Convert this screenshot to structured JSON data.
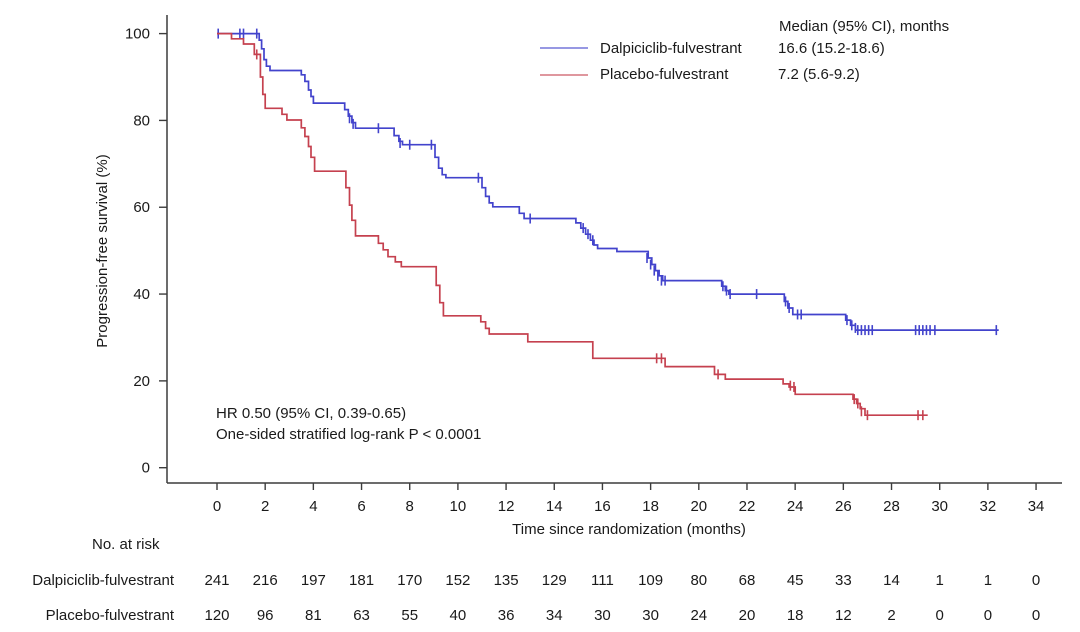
{
  "figure": {
    "background": "#ffffff",
    "text_color": "#1a1a1a",
    "axis_color": "#3c3c3c"
  },
  "chart_data": {
    "type": "line",
    "subtype": "kaplan-meier-step",
    "title": "",
    "xlabel": "Time since randomization (months)",
    "ylabel": "Progression-free survival (%)",
    "xlim": [
      0,
      34
    ],
    "ylim": [
      0,
      100
    ],
    "xticks": [
      0,
      2,
      4,
      6,
      8,
      10,
      12,
      14,
      16,
      18,
      20,
      22,
      24,
      26,
      28,
      30,
      32,
      34
    ],
    "yticks": [
      0,
      20,
      40,
      60,
      80,
      100
    ],
    "grid": "off",
    "legend_position": "top-center-right",
    "legend": {
      "header": "Median (95% CI), months",
      "entries": [
        {
          "label": "Dalpiciclib-fulvestrant",
          "median": "16.6 (15.2-18.6)",
          "color": "#4243cc"
        },
        {
          "label": "Placebo-fulvestrant",
          "median": "7.2 (5.6-9.2)",
          "color": "#c5414f"
        }
      ]
    },
    "annotation": {
      "line1": "HR 0.50 (95% CI, 0.39-0.65)",
      "line2": "One-sided stratified log-rank P < 0.0001"
    },
    "series": [
      {
        "name": "Dalpiciclib-fulvestrant",
        "color": "#4243cc",
        "points": [
          [
            0,
            100
          ],
          [
            1.75,
            98.5
          ],
          [
            1.85,
            96.5
          ],
          [
            1.95,
            94
          ],
          [
            2.05,
            92.5
          ],
          [
            2.2,
            91.5
          ],
          [
            3.5,
            90.5
          ],
          [
            3.65,
            89
          ],
          [
            3.8,
            87
          ],
          [
            3.9,
            85.5
          ],
          [
            4.0,
            84
          ],
          [
            5.3,
            82.5
          ],
          [
            5.45,
            81
          ],
          [
            5.6,
            79.5
          ],
          [
            5.75,
            78.2
          ],
          [
            7.35,
            76.5
          ],
          [
            7.55,
            75.2
          ],
          [
            7.7,
            74.4
          ],
          [
            9.05,
            71.5
          ],
          [
            9.2,
            69
          ],
          [
            9.35,
            67.5
          ],
          [
            9.5,
            66.8
          ],
          [
            11.0,
            64.5
          ],
          [
            11.15,
            62.5
          ],
          [
            11.3,
            61
          ],
          [
            11.45,
            60.1
          ],
          [
            12.55,
            58.6
          ],
          [
            12.75,
            57.4
          ],
          [
            14.9,
            56.4
          ],
          [
            15.1,
            55.2
          ],
          [
            15.3,
            53.8
          ],
          [
            15.5,
            52.4
          ],
          [
            15.65,
            51.3
          ],
          [
            15.8,
            50.5
          ],
          [
            16.6,
            49.8
          ],
          [
            17.9,
            48.3
          ],
          [
            18.05,
            46.8
          ],
          [
            18.2,
            45.4
          ],
          [
            18.35,
            44.2
          ],
          [
            18.5,
            43.1
          ],
          [
            20.95,
            41.8
          ],
          [
            21.1,
            40.8
          ],
          [
            21.25,
            40.0
          ],
          [
            23.55,
            38.3
          ],
          [
            23.7,
            36.8
          ],
          [
            23.9,
            35.3
          ],
          [
            26.1,
            34.0
          ],
          [
            26.3,
            32.8
          ],
          [
            26.5,
            31.7
          ],
          [
            32.45,
            31.7
          ]
        ],
        "censors": [
          [
            0.05,
            100
          ],
          [
            0.95,
            100
          ],
          [
            1.1,
            100
          ],
          [
            1.65,
            100
          ],
          [
            5.5,
            80.5
          ],
          [
            5.65,
            79.2
          ],
          [
            6.7,
            78.2
          ],
          [
            7.6,
            74.8
          ],
          [
            8.0,
            74.4
          ],
          [
            8.9,
            74.4
          ],
          [
            10.85,
            66.8
          ],
          [
            13.0,
            57.4
          ],
          [
            15.2,
            55.2
          ],
          [
            15.4,
            53.8
          ],
          [
            15.6,
            52.4
          ],
          [
            17.85,
            48.3
          ],
          [
            18.0,
            46.8
          ],
          [
            18.15,
            45.4
          ],
          [
            18.3,
            44.2
          ],
          [
            18.45,
            43.1
          ],
          [
            18.6,
            43.1
          ],
          [
            21.0,
            41.8
          ],
          [
            21.15,
            40.8
          ],
          [
            21.3,
            40.0
          ],
          [
            22.4,
            40.0
          ],
          [
            23.6,
            38.3
          ],
          [
            23.75,
            36.8
          ],
          [
            24.1,
            35.3
          ],
          [
            24.25,
            35.3
          ],
          [
            26.15,
            34.0
          ],
          [
            26.35,
            32.8
          ],
          [
            26.5,
            32.2
          ],
          [
            26.6,
            31.7
          ],
          [
            26.75,
            31.7
          ],
          [
            26.9,
            31.7
          ],
          [
            27.05,
            31.7
          ],
          [
            27.2,
            31.7
          ],
          [
            29.0,
            31.7
          ],
          [
            29.15,
            31.7
          ],
          [
            29.3,
            31.7
          ],
          [
            29.45,
            31.7
          ],
          [
            29.6,
            31.7
          ],
          [
            29.8,
            31.7
          ],
          [
            32.35,
            31.7
          ]
        ]
      },
      {
        "name": "Placebo-fulvestrant",
        "color": "#c5414f",
        "points": [
          [
            0,
            100
          ],
          [
            0.6,
            98.8
          ],
          [
            1.1,
            97.6
          ],
          [
            1.55,
            95.2
          ],
          [
            1.8,
            90
          ],
          [
            1.9,
            86
          ],
          [
            2.0,
            82.8
          ],
          [
            2.7,
            81.4
          ],
          [
            2.9,
            80.1
          ],
          [
            3.5,
            78.3
          ],
          [
            3.65,
            76.3
          ],
          [
            3.8,
            74
          ],
          [
            3.9,
            71.5
          ],
          [
            4.05,
            68.3
          ],
          [
            5.35,
            64.5
          ],
          [
            5.5,
            60.5
          ],
          [
            5.6,
            57
          ],
          [
            5.75,
            53.4
          ],
          [
            6.7,
            51.7
          ],
          [
            6.9,
            50.2
          ],
          [
            7.1,
            48.6
          ],
          [
            7.4,
            47.4
          ],
          [
            7.65,
            46.3
          ],
          [
            9.1,
            42
          ],
          [
            9.25,
            38
          ],
          [
            9.4,
            35
          ],
          [
            10.95,
            33.6
          ],
          [
            11.15,
            32.1
          ],
          [
            11.3,
            30.8
          ],
          [
            12.9,
            29
          ],
          [
            15.6,
            25.2
          ],
          [
            18.6,
            23.3
          ],
          [
            20.65,
            21.5
          ],
          [
            21.1,
            20.4
          ],
          [
            23.5,
            19.3
          ],
          [
            23.75,
            18.6
          ],
          [
            24.0,
            16.9
          ],
          [
            26.4,
            15.8
          ],
          [
            26.55,
            14.8
          ],
          [
            26.7,
            13.6
          ],
          [
            26.9,
            12.1
          ],
          [
            29.5,
            12.1
          ]
        ],
        "censors": [
          [
            1.65,
            95.2
          ],
          [
            18.25,
            25.2
          ],
          [
            18.45,
            25.2
          ],
          [
            20.8,
            21.5
          ],
          [
            23.8,
            18.9
          ],
          [
            23.95,
            18.6
          ],
          [
            26.45,
            15.8
          ],
          [
            26.6,
            14.8
          ],
          [
            26.75,
            13.0
          ],
          [
            27.0,
            12.1
          ],
          [
            29.1,
            12.1
          ],
          [
            29.3,
            12.1
          ]
        ]
      }
    ]
  },
  "risk_table": {
    "header": "No. at risk",
    "months": [
      0,
      2,
      4,
      6,
      8,
      10,
      12,
      14,
      16,
      18,
      20,
      22,
      24,
      26,
      28,
      30,
      32,
      34
    ],
    "rows": [
      {
        "label": "Dalpiciclib-fulvestrant",
        "counts": [
          241,
          216,
          197,
          181,
          170,
          152,
          135,
          129,
          111,
          109,
          80,
          68,
          45,
          33,
          14,
          1,
          1,
          0
        ]
      },
      {
        "label": "Placebo-fulvestrant",
        "counts": [
          120,
          96,
          81,
          63,
          55,
          40,
          36,
          34,
          30,
          30,
          24,
          20,
          18,
          12,
          2,
          0,
          0,
          0
        ]
      }
    ]
  }
}
